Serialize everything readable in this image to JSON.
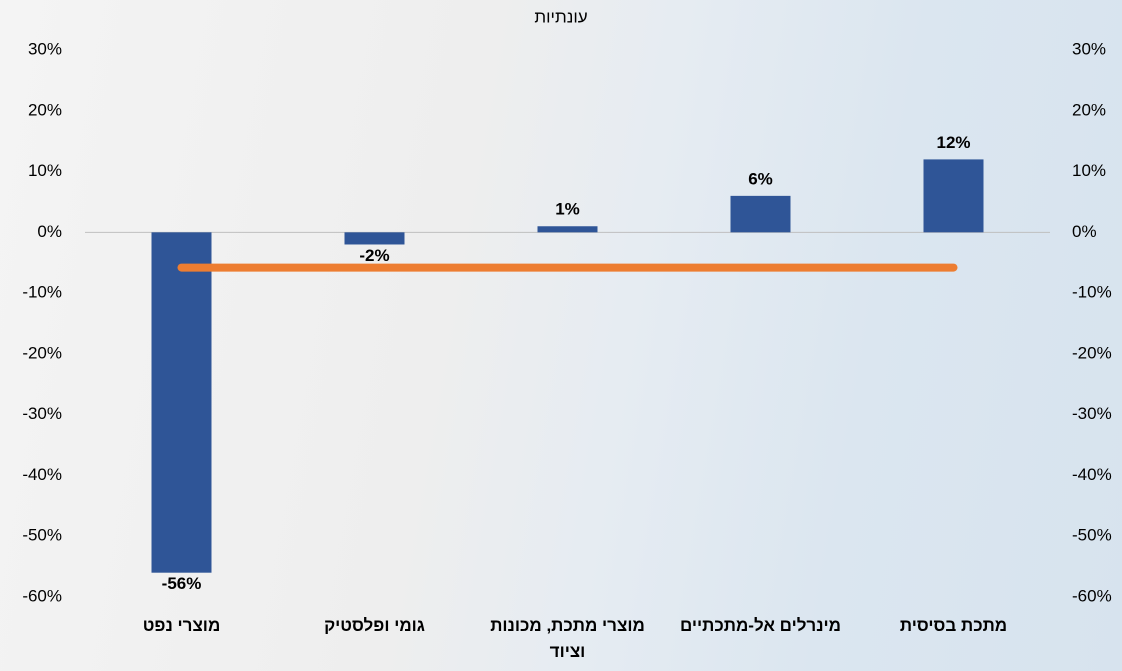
{
  "chart_data": {
    "type": "bar",
    "title": "עונתיות",
    "categories": [
      "מוצרי נפט",
      "גומי ופלסטיק",
      "מוצרי מתכת, מכונות וציוד",
      "מינרלים אל-מתכתיים",
      "מתכת בסיסית"
    ],
    "series": [
      {
        "type": "bar",
        "color": "#2f5597",
        "values": [
          -56,
          -2,
          1,
          6,
          12
        ],
        "value_labels": [
          "-56%",
          "-2%",
          "1%",
          "6%",
          "12%"
        ]
      },
      {
        "type": "line",
        "color": "#ed7d31",
        "values": [
          -5.8,
          -5.8,
          -5.8,
          -5.8,
          -5.8
        ]
      }
    ],
    "ylim": [
      -60,
      30
    ],
    "yticks": [
      {
        "value": -60,
        "label": "-60%"
      },
      {
        "value": -50,
        "label": "-50%"
      },
      {
        "value": -40,
        "label": "-40%"
      },
      {
        "value": -30,
        "label": "-30%"
      },
      {
        "value": -20,
        "label": "-20%"
      },
      {
        "value": -10,
        "label": "-10%"
      },
      {
        "value": 0,
        "label": "0%"
      },
      {
        "value": 10,
        "label": "10%"
      },
      {
        "value": 20,
        "label": "20%"
      },
      {
        "value": 30,
        "label": "30%"
      }
    ],
    "y2lim": [
      -60,
      30
    ],
    "y2ticks": [
      {
        "value": -60,
        "label": "-60%"
      },
      {
        "value": -50,
        "label": "-50%"
      },
      {
        "value": -40,
        "label": "-40%"
      },
      {
        "value": -30,
        "label": "-30%"
      },
      {
        "value": -20,
        "label": "-20%"
      },
      {
        "value": -10,
        "label": "-10%"
      },
      {
        "value": 0,
        "label": "0%"
      },
      {
        "value": 10,
        "label": "10%"
      },
      {
        "value": 20,
        "label": "20%"
      },
      {
        "value": 30,
        "label": "30%"
      }
    ]
  }
}
